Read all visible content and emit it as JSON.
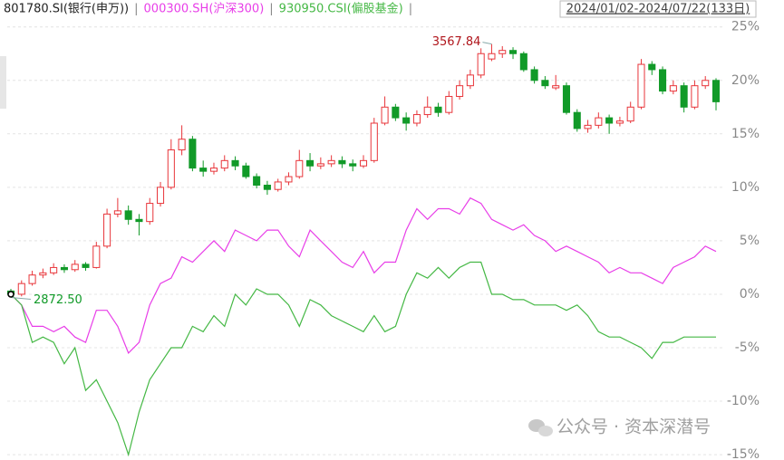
{
  "chart_data": {
    "type": "candlestick",
    "date_range": "2024/01/02-2024/07/22(133日)",
    "separator": "|",
    "max_label": "3567.84",
    "min_label": "2872.50",
    "watermark": "公众号 · 资本深潜号",
    "ylim": [
      -15.5,
      26.5
    ],
    "yticks": [
      {
        "value": 25,
        "label": "25%"
      },
      {
        "value": 20,
        "label": "20%"
      },
      {
        "value": 15,
        "label": "15%"
      },
      {
        "value": 10,
        "label": "10%"
      },
      {
        "value": 5,
        "label": "5%"
      },
      {
        "value": 0,
        "label": "0%"
      },
      {
        "value": -5,
        "label": "-5%"
      },
      {
        "value": -10,
        "label": "-10%"
      },
      {
        "value": -15,
        "label": "-15%"
      }
    ],
    "grid": true,
    "series": [
      {
        "name": "801780.SI(银行(申万))",
        "color": "#222222",
        "up_color": "#e8353a",
        "down_color": "#119a28",
        "candles": [
          [
            0.3,
            0.5,
            -0.3,
            0
          ],
          [
            0,
            1.3,
            -0.2,
            1
          ],
          [
            1,
            2.2,
            0.8,
            1.8
          ],
          [
            1.8,
            2.4,
            1.5,
            2
          ],
          [
            2,
            2.9,
            1.8,
            2.5
          ],
          [
            2.5,
            2.8,
            2,
            2.3
          ],
          [
            2.3,
            3.2,
            2.1,
            2.8
          ],
          [
            2.8,
            3,
            2.2,
            2.5
          ],
          [
            2.5,
            4.9,
            2.4,
            4.5
          ],
          [
            4.5,
            8,
            4.3,
            7.5
          ],
          [
            7.5,
            9,
            7.2,
            7.8
          ],
          [
            7.8,
            8.3,
            6.5,
            7
          ],
          [
            7,
            7.5,
            5.5,
            6.8
          ],
          [
            6.8,
            9,
            6.5,
            8.5
          ],
          [
            8.5,
            10.5,
            8.2,
            10
          ],
          [
            10,
            14.5,
            9.8,
            13.5
          ],
          [
            13.5,
            15.8,
            13,
            14.5
          ],
          [
            14.5,
            14.8,
            11.5,
            11.8
          ],
          [
            11.8,
            12.5,
            11,
            11.5
          ],
          [
            11.5,
            12.3,
            11.2,
            11.8
          ],
          [
            11.8,
            13,
            11.5,
            12.5
          ],
          [
            12.5,
            12.9,
            11.6,
            12
          ],
          [
            12,
            12.3,
            10.8,
            11
          ],
          [
            11,
            11.3,
            9.9,
            10.2
          ],
          [
            10.2,
            10.6,
            9.3,
            9.8
          ],
          [
            9.8,
            10.8,
            9.6,
            10.5
          ],
          [
            10.5,
            11.4,
            10.2,
            11
          ],
          [
            11,
            13.5,
            10.8,
            12.5
          ],
          [
            12.5,
            13.2,
            11.5,
            12
          ],
          [
            12,
            12.8,
            11.7,
            12.2
          ],
          [
            12.2,
            13,
            11.9,
            12.5
          ],
          [
            12.5,
            12.9,
            11.8,
            12.2
          ],
          [
            12.2,
            12.6,
            11.5,
            12
          ],
          [
            12,
            13,
            11.8,
            12.5
          ],
          [
            12.5,
            16.5,
            12.3,
            16
          ],
          [
            16,
            18.5,
            15.8,
            17.5
          ],
          [
            17.5,
            17.8,
            16.2,
            16.5
          ],
          [
            16.5,
            17,
            15.3,
            16
          ],
          [
            16,
            17.2,
            15.7,
            16.8
          ],
          [
            16.8,
            18.5,
            16.5,
            17.5
          ],
          [
            17.5,
            17.9,
            16.6,
            17
          ],
          [
            17,
            19,
            16.8,
            18.5
          ],
          [
            18.5,
            20,
            18.2,
            19.5
          ],
          [
            19.5,
            21,
            19.2,
            20.5
          ],
          [
            20.5,
            23,
            20.2,
            22.5
          ],
          [
            22,
            23.4,
            21.8,
            22.5
          ],
          [
            22.5,
            23.2,
            22.1,
            22.8
          ],
          [
            22.8,
            23.1,
            22,
            22.5
          ],
          [
            22.5,
            22.7,
            20.8,
            21
          ],
          [
            21,
            21.3,
            19.7,
            20
          ],
          [
            20,
            20.4,
            19.2,
            19.5
          ],
          [
            19.3,
            20.5,
            19.1,
            19.5
          ],
          [
            19.5,
            19.8,
            16.8,
            17
          ],
          [
            17,
            17.3,
            15.2,
            15.5
          ],
          [
            15.5,
            16.3,
            15.1,
            15.8
          ],
          [
            15.8,
            17,
            15.5,
            16.5
          ],
          [
            16.5,
            16.8,
            15,
            16
          ],
          [
            16,
            16.6,
            15.7,
            16.2
          ],
          [
            16.2,
            18,
            16,
            17.5
          ],
          [
            17.5,
            22,
            17.3,
            21.5
          ],
          [
            21.5,
            21.8,
            20.5,
            21
          ],
          [
            21,
            21.3,
            18.7,
            19
          ],
          [
            19,
            20,
            18.7,
            19.5
          ],
          [
            19.5,
            19.8,
            17,
            17.5
          ],
          [
            17.5,
            20,
            17.3,
            19.5
          ],
          [
            19.5,
            20.4,
            19.2,
            20
          ],
          [
            20,
            20.2,
            17.2,
            18
          ]
        ]
      },
      {
        "name": "000300.SH(沪深300)",
        "color": "#e83ee8",
        "values": [
          0,
          -1,
          -3,
          -3,
          -3.5,
          -3,
          -4,
          -4.5,
          -1.5,
          -1.5,
          -3,
          -5.5,
          -4.5,
          -1,
          1,
          1.5,
          3.5,
          3,
          4,
          5,
          4,
          6,
          5.5,
          5,
          6,
          6,
          4.5,
          3.5,
          6,
          5,
          4,
          3,
          2.5,
          4,
          2,
          3,
          3,
          6,
          8,
          7,
          8,
          8,
          7.5,
          9,
          8.5,
          7,
          6.5,
          6,
          6.5,
          5.5,
          5,
          4,
          4.5,
          4,
          3.5,
          3,
          2,
          2.5,
          2,
          2,
          1.5,
          1,
          2.5,
          3,
          3.5,
          4.5,
          4
        ]
      },
      {
        "name": "930950.CSI(偏股基金)",
        "color": "#45b845",
        "values": [
          0,
          -1,
          -4.5,
          -4,
          -4.5,
          -6.5,
          -5,
          -9,
          -8,
          -10,
          -12,
          -15,
          -11,
          -8,
          -6.5,
          -5,
          -5,
          -3,
          -3.5,
          -2,
          -3,
          0,
          -1,
          0.5,
          0,
          0,
          -1,
          -3,
          -0.5,
          -1,
          -2,
          -2.5,
          -3,
          -3.5,
          -2,
          -3.5,
          -3,
          0,
          2,
          1.5,
          2.5,
          1.5,
          2.5,
          3,
          3,
          0,
          0,
          -0.5,
          -0.5,
          -1,
          -1,
          -1,
          -1.5,
          -1,
          -2,
          -3.5,
          -4,
          -4,
          -4.5,
          -5,
          -6,
          -4.5,
          -4.5,
          -4,
          -4,
          -4,
          -4
        ]
      }
    ]
  }
}
